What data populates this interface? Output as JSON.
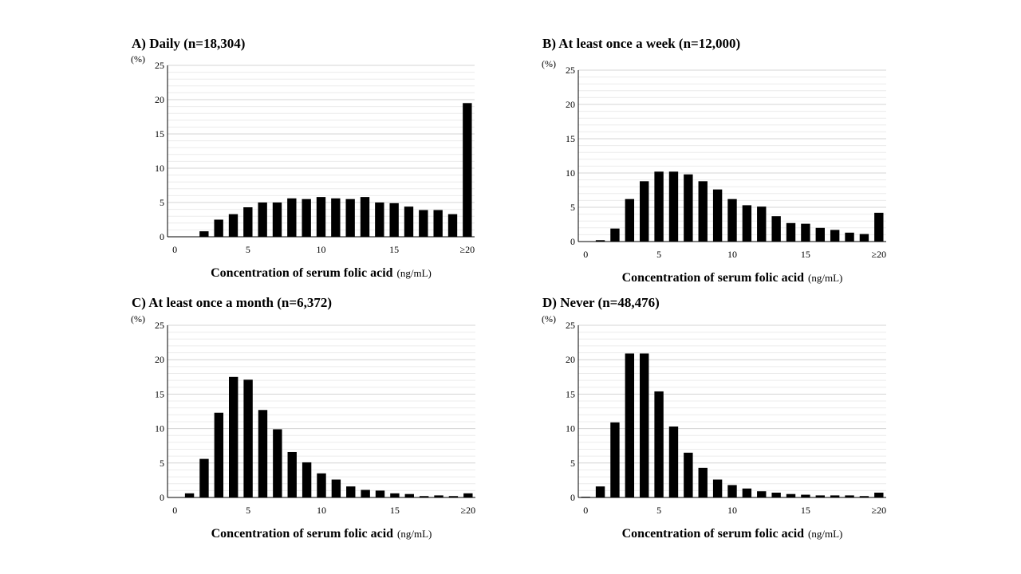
{
  "chart_data": [
    {
      "type": "bar",
      "title": "A) Daily (n=18,304)",
      "ylabel": "(%)",
      "xlabel": "Concentration of serum folic acid",
      "xunit": "(ng/mL)",
      "ylim": [
        0,
        25
      ],
      "yticks": [
        "0",
        "5",
        "10",
        "15",
        "20",
        "25"
      ],
      "xticks": [
        "0",
        "5",
        "10",
        "15",
        "≥20"
      ],
      "grid": true,
      "categories": [
        "0",
        "1",
        "2",
        "3",
        "4",
        "5",
        "6",
        "7",
        "8",
        "9",
        "10",
        "11",
        "12",
        "13",
        "14",
        "15",
        "16",
        "17",
        "18",
        "19",
        "≥20"
      ],
      "values": [
        0,
        0,
        0.8,
        2.5,
        3.3,
        4.3,
        5.0,
        5.0,
        5.6,
        5.5,
        5.8,
        5.6,
        5.5,
        5.8,
        5.0,
        4.9,
        4.4,
        3.9,
        3.9,
        3.3,
        19.5
      ]
    },
    {
      "type": "bar",
      "title": "B) At least once a week (n=12,000)",
      "ylabel": "(%)",
      "xlabel": "Concentration of serum folic acid",
      "xunit": "(ng/mL)",
      "ylim": [
        0,
        25
      ],
      "yticks": [
        "0",
        "5",
        "10",
        "15",
        "20",
        "25"
      ],
      "xticks": [
        "0",
        "5",
        "10",
        "15",
        "≥20"
      ],
      "grid": true,
      "categories": [
        "0",
        "1",
        "2",
        "3",
        "4",
        "5",
        "6",
        "7",
        "8",
        "9",
        "10",
        "11",
        "12",
        "13",
        "14",
        "15",
        "16",
        "17",
        "18",
        "19",
        "≥20"
      ],
      "values": [
        0,
        0.2,
        1.9,
        6.2,
        8.8,
        10.2,
        10.2,
        9.8,
        8.8,
        7.6,
        6.2,
        5.3,
        5.1,
        3.7,
        2.7,
        2.6,
        2.0,
        1.7,
        1.3,
        1.1,
        4.2
      ]
    },
    {
      "type": "bar",
      "title": "C) At least once a month (n=6,372)",
      "ylabel": "(%)",
      "xlabel": "Concentration of serum folic acid",
      "xunit": "(ng/mL)",
      "ylim": [
        0,
        25
      ],
      "yticks": [
        "0",
        "5",
        "10",
        "15",
        "20",
        "25"
      ],
      "xticks": [
        "0",
        "5",
        "10",
        "15",
        "≥20"
      ],
      "grid": true,
      "categories": [
        "0",
        "1",
        "2",
        "3",
        "4",
        "5",
        "6",
        "7",
        "8",
        "9",
        "10",
        "11",
        "12",
        "13",
        "14",
        "15",
        "16",
        "17",
        "18",
        "19",
        "≥20"
      ],
      "values": [
        0,
        0.6,
        5.6,
        12.3,
        17.5,
        17.1,
        12.7,
        9.9,
        6.6,
        5.1,
        3.5,
        2.6,
        1.6,
        1.1,
        1.0,
        0.6,
        0.5,
        0.2,
        0.3,
        0.2,
        0.6
      ]
    },
    {
      "type": "bar",
      "title": "D) Never (n=48,476)",
      "ylabel": "(%)",
      "xlabel": "Concentration of serum folic acid",
      "xunit": "(ng/mL)",
      "ylim": [
        0,
        25
      ],
      "yticks": [
        "0",
        "5",
        "10",
        "15",
        "20",
        "25"
      ],
      "xticks": [
        "0",
        "5",
        "10",
        "15",
        "≥20"
      ],
      "grid": true,
      "categories": [
        "0",
        "1",
        "2",
        "3",
        "4",
        "5",
        "6",
        "7",
        "8",
        "9",
        "10",
        "11",
        "12",
        "13",
        "14",
        "15",
        "16",
        "17",
        "18",
        "19",
        "≥20"
      ],
      "values": [
        0.1,
        1.6,
        10.9,
        20.9,
        20.9,
        15.4,
        10.3,
        6.5,
        4.3,
        2.6,
        1.8,
        1.3,
        0.9,
        0.7,
        0.5,
        0.4,
        0.3,
        0.3,
        0.3,
        0.2,
        0.7
      ]
    }
  ]
}
